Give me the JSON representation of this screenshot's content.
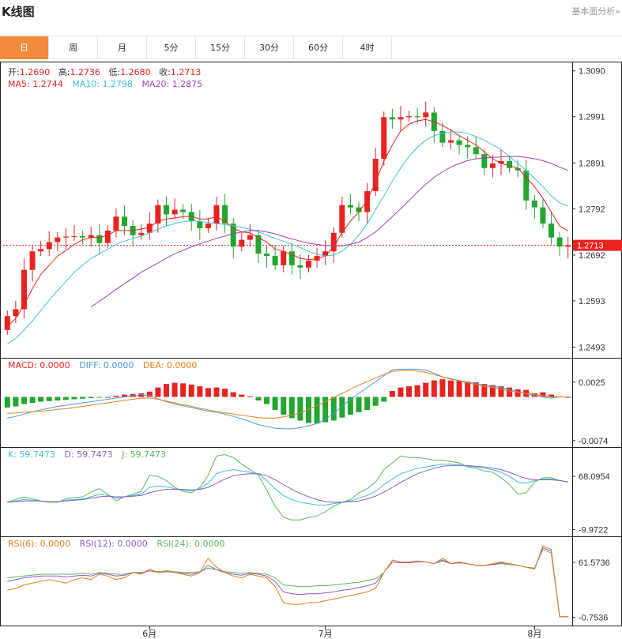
{
  "header": {
    "title": "K线图",
    "more_link": "基本面分析»"
  },
  "tabs": [
    {
      "label": "日",
      "active": true
    },
    {
      "label": "周"
    },
    {
      "label": "月"
    },
    {
      "label": "5分"
    },
    {
      "label": "15分"
    },
    {
      "label": "30分"
    },
    {
      "label": "60分"
    },
    {
      "label": "4时"
    }
  ],
  "colors": {
    "up": "#e8231f",
    "down": "#22a630",
    "ma5": "#e8231f",
    "ma10": "#3fc1d8",
    "ma20": "#a040b8",
    "macd": "#e8231f",
    "diff": "#4a9be8",
    "dea": "#f07d1a",
    "k": "#3fc1d8",
    "d": "#8b5ec9",
    "j": "#5cb85c",
    "rsi6": "#f07d1a",
    "rsi12": "#8b5ec9",
    "rsi24": "#5cb85c"
  },
  "chart_data": {
    "type": "candlestick",
    "ohlc_legend": {
      "open": {
        "label": "开:",
        "value": "1.2690"
      },
      "high": {
        "label": "高:",
        "value": "1.2736"
      },
      "low": {
        "label": "低:",
        "value": "1.2680"
      },
      "close": {
        "label": "收:",
        "value": "1.2713"
      }
    },
    "ma_legend": [
      {
        "label": "MA5: ",
        "value": "1.2744"
      },
      {
        "label": "MA10: ",
        "value": "1.2798"
      },
      {
        "label": "MA20: ",
        "value": "1.2875"
      }
    ],
    "price_axis": {
      "ticks": [
        "1.3090",
        "1.2991",
        "1.2891",
        "1.2792",
        "1.2692",
        "1.2593",
        "1.2493"
      ],
      "range": [
        1.247,
        1.311
      ]
    },
    "current_price": "1.2713",
    "x_labels": [
      {
        "label": "6月",
        "index": 17
      },
      {
        "label": "7月",
        "index": 38
      },
      {
        "label": "8月",
        "index": 63
      }
    ],
    "close": [
      1.256,
      1.2575,
      1.266,
      1.27,
      1.2705,
      1.272,
      1.273,
      1.2732,
      1.2733,
      1.273,
      1.2735,
      1.2718,
      1.2745,
      1.2775,
      1.2755,
      1.2735,
      1.274,
      1.276,
      1.28,
      1.278,
      1.279,
      1.2785,
      1.2765,
      1.275,
      1.276,
      1.28,
      1.276,
      1.271,
      1.2725,
      1.2735,
      1.2695,
      1.269,
      1.267,
      1.27,
      1.267,
      1.2665,
      1.268,
      1.269,
      1.27,
      1.274,
      1.28,
      1.2795,
      1.2785,
      1.283,
      1.29,
      1.299,
      1.2985,
      1.299,
      1.2992,
      1.299,
      1.3,
      1.296,
      1.2935,
      1.294,
      1.293,
      1.2925,
      1.291,
      1.288,
      1.289,
      1.2895,
      1.288,
      1.2875,
      1.281,
      1.2795,
      1.276,
      1.273,
      1.271,
      1.2713
    ],
    "ma5": [
      1.2538,
      1.2555,
      1.2585,
      1.262,
      1.265,
      1.267,
      1.269,
      1.2702,
      1.2715,
      1.2725,
      1.273,
      1.273,
      1.2735,
      1.2745,
      1.2745,
      1.2745,
      1.2748,
      1.2752,
      1.2765,
      1.277,
      1.2772,
      1.2775,
      1.2776,
      1.277,
      1.277,
      1.2775,
      1.2765,
      1.275,
      1.2742,
      1.274,
      1.273,
      1.272,
      1.2705,
      1.27,
      1.2693,
      1.2685,
      1.2682,
      1.2684,
      1.269,
      1.271,
      1.274,
      1.2765,
      1.2785,
      1.281,
      1.285,
      1.2895,
      1.293,
      1.296,
      1.2975,
      1.2982,
      1.2985,
      1.298,
      1.2972,
      1.2962,
      1.295,
      1.294,
      1.293,
      1.2915,
      1.29,
      1.289,
      1.2885,
      1.288,
      1.286,
      1.284,
      1.2815,
      1.2785,
      1.2755,
      1.2744
    ],
    "ma10": [
      1.25,
      1.2512,
      1.253,
      1.255,
      1.2572,
      1.2595,
      1.2615,
      1.2635,
      1.2655,
      1.267,
      1.2685,
      1.2695,
      1.2705,
      1.2715,
      1.2722,
      1.2728,
      1.2733,
      1.274,
      1.2748,
      1.2755,
      1.276,
      1.2764,
      1.2766,
      1.2765,
      1.2762,
      1.276,
      1.2758,
      1.2755,
      1.2752,
      1.2748,
      1.2742,
      1.2735,
      1.2728,
      1.2722,
      1.2715,
      1.2708,
      1.27,
      1.2694,
      1.269,
      1.2692,
      1.27,
      1.2715,
      1.2735,
      1.276,
      1.279,
      1.282,
      1.2852,
      1.288,
      1.2905,
      1.2925,
      1.294,
      1.295,
      1.2955,
      1.2958,
      1.2958,
      1.2955,
      1.2948,
      1.294,
      1.293,
      1.292,
      1.2905,
      1.289,
      1.2875,
      1.2858,
      1.284,
      1.282,
      1.2805,
      1.2798
    ],
    "ma20": [
      null,
      null,
      null,
      null,
      null,
      null,
      null,
      null,
      null,
      null,
      1.258,
      1.2592,
      1.2605,
      1.2618,
      1.263,
      1.2642,
      1.2655,
      1.2665,
      1.2675,
      1.2685,
      1.2695,
      1.2702,
      1.271,
      1.2716,
      1.2722,
      1.2728,
      1.2733,
      1.2738,
      1.2742,
      1.2745,
      1.2745,
      1.2742,
      1.2738,
      1.2732,
      1.2727,
      1.2722,
      1.2718,
      1.2715,
      1.2713,
      1.2712,
      1.2712,
      1.2715,
      1.272,
      1.273,
      1.2742,
      1.2758,
      1.2775,
      1.2792,
      1.281,
      1.2828,
      1.2845,
      1.286,
      1.2872,
      1.2882,
      1.289,
      1.2896,
      1.29,
      1.2902,
      1.2903,
      1.2904,
      1.2905,
      1.2905,
      1.2903,
      1.29,
      1.2896,
      1.289,
      1.2882,
      1.2875
    ],
    "macd": {
      "legend": [
        {
          "label": "MACD: ",
          "value": "0.0000"
        },
        {
          "label": "DIFF: ",
          "value": "0.0000"
        },
        {
          "label": "DEA: ",
          "value": "0.0000"
        }
      ],
      "axis_ticks": [
        "0.0025",
        "-0.0074"
      ],
      "range": [
        -0.0085,
        0.0065
      ],
      "hist": [
        -0.0018,
        -0.0016,
        -0.0012,
        -0.001,
        -0.0008,
        -0.0007,
        -0.0006,
        -0.0005,
        -0.0004,
        -0.0003,
        -0.0002,
        -0.0001,
        0.0,
        0.0002,
        0.0004,
        0.0005,
        0.0006,
        0.0009,
        0.0016,
        0.0022,
        0.0024,
        0.0023,
        0.0021,
        0.0018,
        0.0015,
        0.0016,
        0.0014,
        0.0008,
        0.0004,
        0.0001,
        -0.0006,
        -0.0012,
        -0.0022,
        -0.003,
        -0.0036,
        -0.004,
        -0.0044,
        -0.0045,
        -0.0043,
        -0.004,
        -0.0035,
        -0.003,
        -0.0026,
        -0.0022,
        -0.0015,
        -0.0008,
        0.001,
        0.0016,
        0.0018,
        0.002,
        0.0024,
        0.0028,
        0.003,
        0.0028,
        0.0027,
        0.0026,
        0.0025,
        0.0022,
        0.002,
        0.0018,
        0.0016,
        0.0013,
        0.0012,
        0.0006,
        0.0008,
        0.0004,
        0.0001,
        0.0
      ],
      "diff": [
        -0.0036,
        -0.0033,
        -0.0029,
        -0.0025,
        -0.0022,
        -0.0019,
        -0.0016,
        -0.0014,
        -0.0012,
        -0.001,
        -0.0008,
        -0.0006,
        -0.0004,
        -0.0002,
        0.0,
        0.0002,
        0.0004,
        0.0002,
        -0.0003,
        -0.0008,
        -0.0012,
        -0.0015,
        -0.0018,
        -0.0021,
        -0.0024,
        -0.0026,
        -0.0029,
        -0.0033,
        -0.0037,
        -0.0042,
        -0.0047,
        -0.005,
        -0.0053,
        -0.0054,
        -0.0054,
        -0.0052,
        -0.0049,
        -0.0045,
        -0.0038,
        -0.0028,
        -0.0016,
        -0.0004,
        0.0006,
        0.0016,
        0.0026,
        0.0036,
        0.0046,
        0.0047,
        0.0047,
        0.0047,
        0.0046,
        0.004,
        0.0034,
        0.003,
        0.0028,
        0.0025,
        0.0023,
        0.002,
        0.0018,
        0.0016,
        0.0013,
        0.0009,
        0.0005,
        0.0002,
        0.0,
        -0.0002,
        0.0,
        0.0
      ],
      "dea": [
        -0.0028,
        -0.0027,
        -0.0026,
        -0.0025,
        -0.0024,
        -0.0023,
        -0.0021,
        -0.002,
        -0.0018,
        -0.0016,
        -0.0014,
        -0.0012,
        -0.001,
        -0.0008,
        -0.0006,
        -0.0004,
        -0.0002,
        -0.0002,
        -0.0004,
        -0.0007,
        -0.001,
        -0.0013,
        -0.0016,
        -0.0019,
        -0.0022,
        -0.0025,
        -0.0027,
        -0.0029,
        -0.0031,
        -0.0033,
        -0.0035,
        -0.0036,
        -0.0036,
        -0.0034,
        -0.0031,
        -0.0027,
        -0.0021,
        -0.0015,
        -0.0008,
        -0.0001,
        0.0006,
        0.0013,
        0.002,
        0.0026,
        0.0032,
        0.0038,
        0.0043,
        0.0045,
        0.0045,
        0.0044,
        0.0042,
        0.0038,
        0.0034,
        0.0031,
        0.0027,
        0.0024,
        0.0021,
        0.0018,
        0.0016,
        0.0013,
        0.001,
        0.0008,
        0.0006,
        0.0004,
        0.0002,
        0.0,
        0.0,
        0.0
      ]
    },
    "kdj": {
      "legend": [
        {
          "label": "K: ",
          "value": "59.7473"
        },
        {
          "label": "D: ",
          "value": "59.7473"
        },
        {
          "label": "J: ",
          "value": "59.7473"
        }
      ],
      "axis_ticks": [
        "68.0954",
        "-9.9722"
      ],
      "range": [
        -20,
        110
      ],
      "k": [
        30,
        32,
        34,
        33,
        32,
        31,
        31,
        33,
        34,
        35,
        38,
        42,
        40,
        36,
        38,
        40,
        42,
        52,
        54,
        53,
        50,
        48,
        47,
        50,
        58,
        72,
        76,
        78,
        76,
        74,
        72,
        62,
        50,
        40,
        34,
        30,
        28,
        26,
        26,
        28,
        30,
        32,
        36,
        40,
        46,
        56,
        64,
        72,
        76,
        80,
        82,
        84,
        86,
        86,
        85,
        83,
        82,
        80,
        78,
        74,
        68,
        60,
        58,
        62,
        64,
        64,
        62,
        60
      ],
      "d": [
        30,
        31,
        32,
        32,
        32,
        31,
        31,
        32,
        33,
        34,
        36,
        38,
        39,
        38,
        38,
        39,
        40,
        44,
        47,
        49,
        49,
        49,
        48,
        49,
        52,
        58,
        64,
        69,
        71,
        72,
        72,
        69,
        63,
        56,
        49,
        43,
        38,
        34,
        31,
        30,
        30,
        31,
        32,
        35,
        39,
        45,
        52,
        59,
        66,
        72,
        76,
        80,
        83,
        84,
        84,
        84,
        83,
        82,
        80,
        78,
        74,
        69,
        65,
        63,
        63,
        63,
        62,
        60
      ],
      "j": [
        30,
        34,
        38,
        35,
        32,
        30,
        30,
        35,
        37,
        38,
        45,
        50,
        42,
        32,
        38,
        42,
        46,
        70,
        68,
        62,
        52,
        46,
        44,
        52,
        70,
        98,
        100,
        96,
        86,
        78,
        70,
        48,
        24,
        8,
        4,
        4,
        8,
        10,
        16,
        24,
        30,
        34,
        44,
        50,
        60,
        78,
        88,
        98,
        96,
        96,
        94,
        92,
        92,
        90,
        88,
        82,
        80,
        76,
        74,
        66,
        56,
        42,
        44,
        60,
        66,
        66,
        62,
        60
      ]
    },
    "rsi": {
      "legend": [
        {
          "label": "RSI(6): ",
          "value": "0.0000"
        },
        {
          "label": "RSI(12): ",
          "value": "0.0000"
        },
        {
          "label": "RSI(24): ",
          "value": "0.0000"
        }
      ],
      "axis_ticks": [
        "61.5736",
        "-0.7536"
      ],
      "range": [
        -10,
        90
      ],
      "rsi6": [
        30,
        32,
        36,
        38,
        40,
        42,
        40,
        38,
        42,
        44,
        42,
        48,
        46,
        42,
        44,
        50,
        48,
        54,
        50,
        52,
        50,
        48,
        46,
        50,
        66,
        56,
        50,
        46,
        44,
        48,
        46,
        44,
        34,
        16,
        14,
        14,
        16,
        16,
        18,
        20,
        22,
        24,
        26,
        28,
        32,
        50,
        64,
        62,
        62,
        63,
        62,
        60,
        66,
        60,
        62,
        60,
        58,
        58,
        60,
        62,
        60,
        58,
        56,
        54,
        80,
        76,
        0,
        0
      ],
      "rsi12": [
        40,
        42,
        44,
        45,
        46,
        46,
        46,
        45,
        46,
        47,
        46,
        49,
        48,
        46,
        47,
        50,
        49,
        52,
        50,
        51,
        50,
        49,
        48,
        50,
        58,
        53,
        50,
        48,
        47,
        49,
        48,
        46,
        40,
        28,
        26,
        25,
        26,
        26,
        27,
        28,
        30,
        31,
        33,
        35,
        38,
        50,
        62,
        61,
        61,
        62,
        62,
        60,
        64,
        60,
        61,
        60,
        58,
        58,
        59,
        61,
        60,
        58,
        56,
        54,
        78,
        74,
        0,
        0
      ],
      "rsi24": [
        44,
        45,
        46,
        47,
        48,
        48,
        48,
        48,
        48,
        49,
        48,
        50,
        49,
        48,
        48,
        50,
        50,
        52,
        51,
        52,
        51,
        50,
        50,
        51,
        55,
        53,
        51,
        50,
        49,
        50,
        49,
        48,
        44,
        36,
        35,
        34,
        34,
        35,
        35,
        36,
        37,
        38,
        39,
        41,
        43,
        50,
        62,
        61,
        61,
        62,
        62,
        60,
        63,
        60,
        61,
        60,
        58,
        58,
        59,
        60,
        59,
        58,
        56,
        55,
        76,
        72,
        0,
        0
      ]
    }
  }
}
